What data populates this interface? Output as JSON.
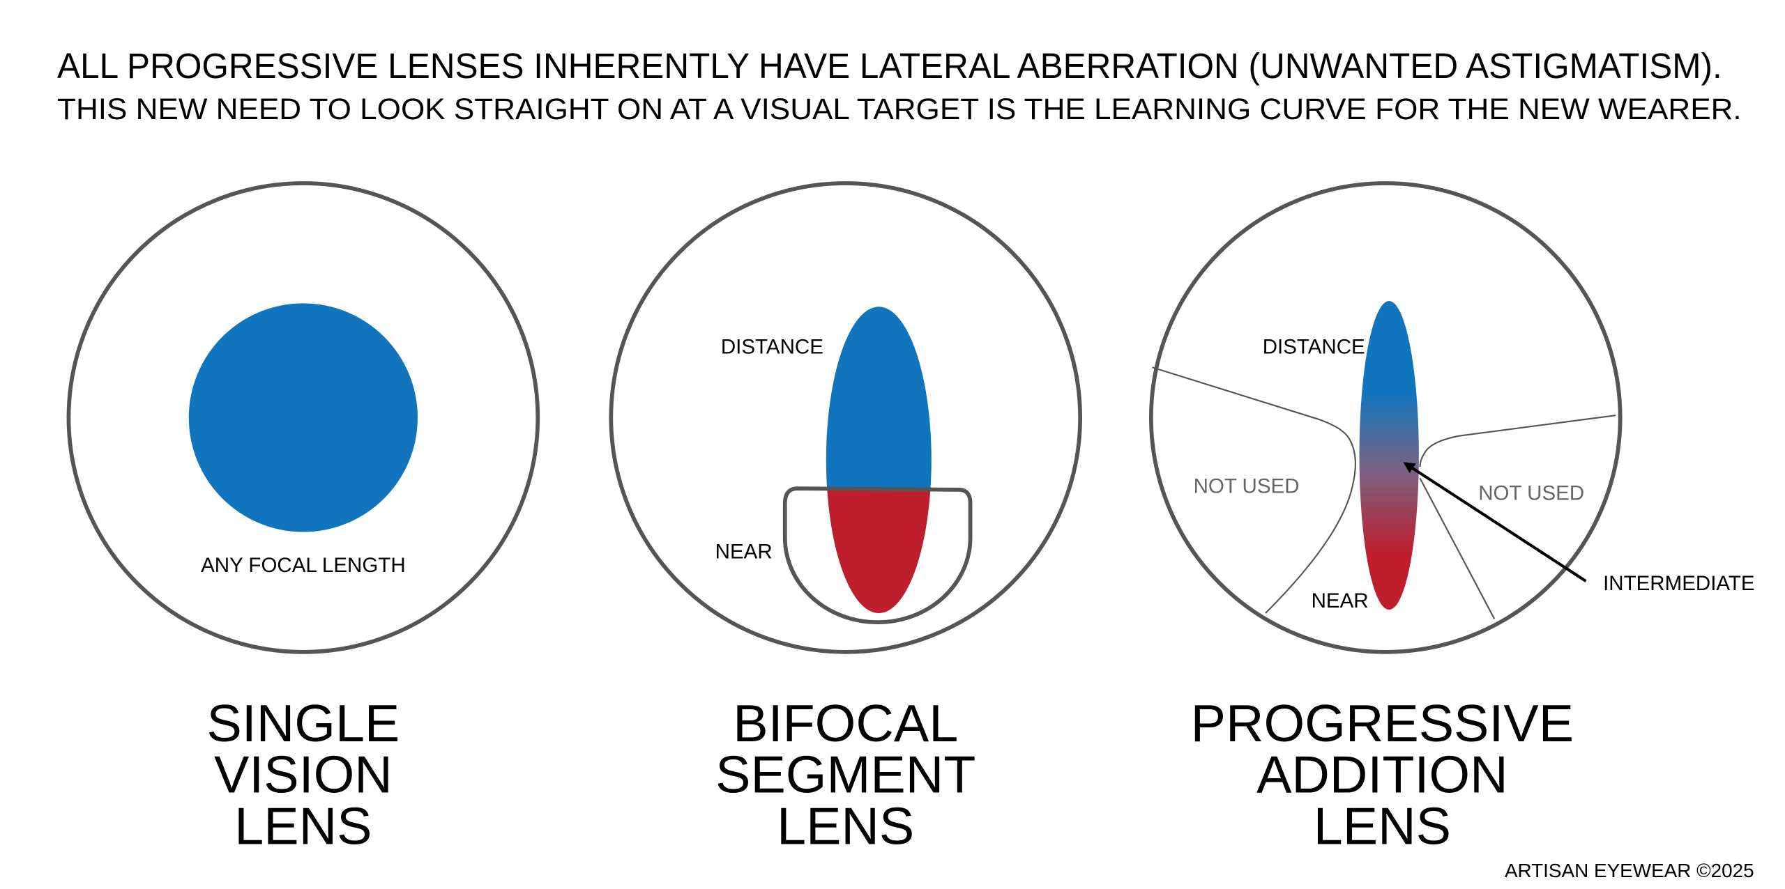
{
  "header": {
    "line1": "ALL PROGRESSIVE LENSES INHERENTLY HAVE LATERAL ABERRATION (UNWANTED ASTIGMATISM).",
    "line2": "THIS NEW NEED TO LOOK STRAIGHT ON AT A VISUAL TARGET IS THE LEARNING CURVE FOR THE NEW WEARER."
  },
  "colors": {
    "distance": "#1175bd",
    "near": "#be1e2d",
    "outline": "#555555",
    "not_used_text": "#666666"
  },
  "lenses": [
    {
      "labels": {
        "zone": "ANY FOCAL LENGTH"
      },
      "title": [
        "SINGLE",
        "VISION",
        "LENS"
      ]
    },
    {
      "labels": {
        "distance": "DISTANCE",
        "near": "NEAR"
      },
      "title": [
        "BIFOCAL",
        "SEGMENT",
        "LENS"
      ]
    },
    {
      "labels": {
        "distance": "DISTANCE",
        "not_used_left": "NOT USED",
        "not_used_right": "NOT USED",
        "near": "NEAR",
        "intermediate": "INTERMEDIATE"
      },
      "title": [
        "PROGRESSIVE",
        "ADDITION",
        "LENS"
      ]
    }
  ],
  "footer": {
    "credit": "ARTISAN EYEWEAR ©2025"
  }
}
